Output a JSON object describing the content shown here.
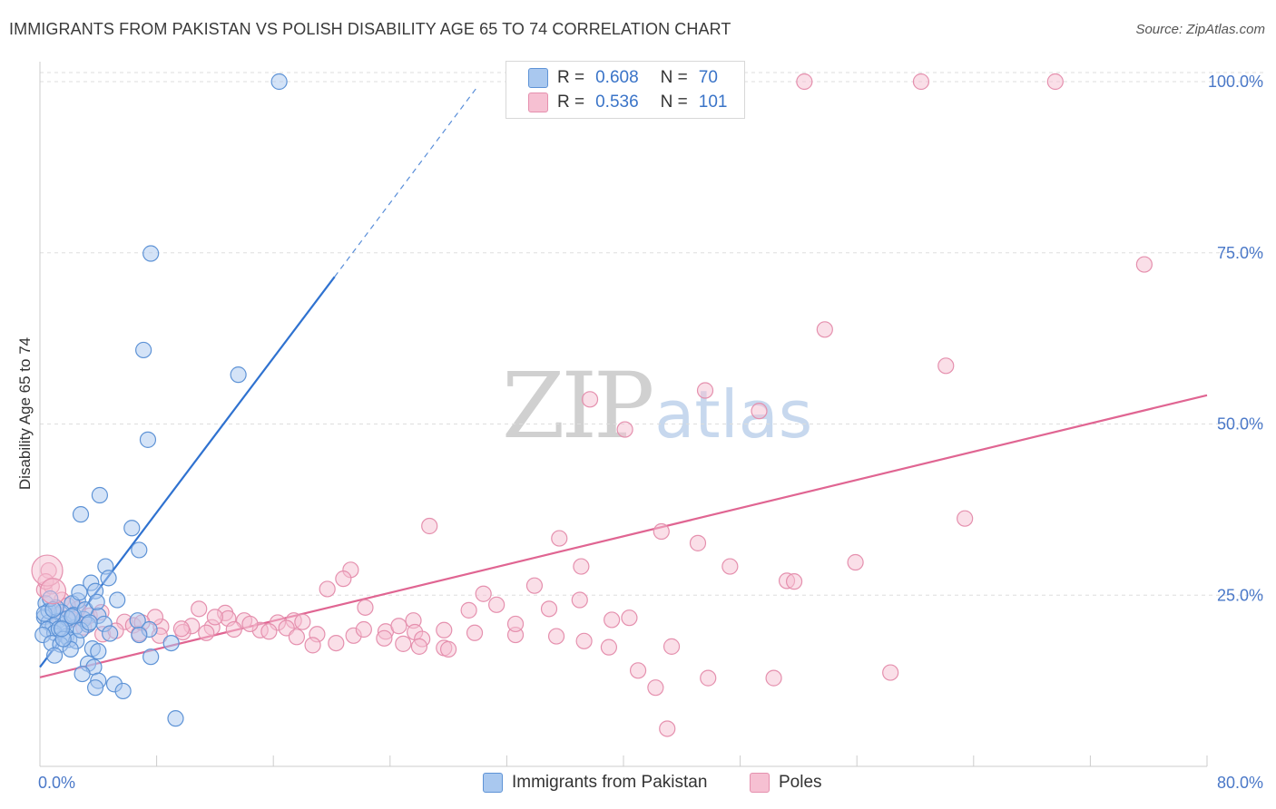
{
  "header": {
    "title": "IMMIGRANTS FROM PAKISTAN VS POLISH DISABILITY AGE 65 TO 74 CORRELATION CHART",
    "source": "Source: ZipAtlas.com"
  },
  "watermark": {
    "zip": "ZIP",
    "atlas": "atlas"
  },
  "legend_top": {
    "rows": [
      {
        "r_label": "R =",
        "r_value": "0.608",
        "n_label": "N =",
        "n_value": "70"
      },
      {
        "r_label": "R =",
        "r_value": "0.536",
        "n_label": "N =",
        "n_value": "101"
      }
    ]
  },
  "legend_bottom": {
    "items": [
      {
        "label": "Immigrants from Pakistan"
      },
      {
        "label": "Poles"
      }
    ]
  },
  "colors": {
    "blue_fill": "#a9c8ef",
    "blue_stroke": "#5e93d6",
    "blue_line": "#2f72d0",
    "pink_fill": "#f6c0d2",
    "pink_stroke": "#e590ae",
    "pink_line": "#e06592",
    "grid": "#dddddd",
    "tick_text": "#4a78c8"
  },
  "chart_data": {
    "type": "scatter",
    "title": "IMMIGRANTS FROM PAKISTAN VS POLISH DISABILITY AGE 65 TO 74 CORRELATION CHART",
    "xlabel": "",
    "ylabel": "Disability Age 65 to 74",
    "xlim": [
      0,
      80
    ],
    "ylim": [
      0,
      100
    ],
    "x_tick_labels": [
      "0.0%",
      "80.0%"
    ],
    "y_ticks": [
      25,
      50,
      75,
      100
    ],
    "y_tick_labels": [
      "25.0%",
      "50.0%",
      "75.0%",
      "100.0%"
    ],
    "grid": true,
    "series": [
      {
        "name": "Immigrants from Pakistan",
        "R": 0.608,
        "N": 70,
        "trend": {
          "x0": 0,
          "y0": 14.5,
          "x1": 20.2,
          "y1": 71.5,
          "dash_to_x": 29.9,
          "dash_to_y": 99.0
        },
        "points": [
          [
            16.4,
            100
          ],
          [
            7.6,
            74.9
          ],
          [
            7.1,
            60.8
          ],
          [
            13.6,
            57.2
          ],
          [
            7.4,
            47.7
          ],
          [
            4.1,
            39.6
          ],
          [
            2.8,
            36.8
          ],
          [
            6.3,
            34.8
          ],
          [
            6.8,
            31.6
          ],
          [
            4.5,
            29.2
          ],
          [
            4.7,
            27.5
          ],
          [
            3.5,
            26.8
          ],
          [
            3.8,
            25.6
          ],
          [
            5.3,
            24.3
          ],
          [
            0.4,
            23.8
          ],
          [
            2.6,
            24.2
          ],
          [
            2.2,
            23.8
          ],
          [
            4.0,
            22.0
          ],
          [
            1.5,
            22.5
          ],
          [
            0.3,
            21.8
          ],
          [
            0.6,
            21.0
          ],
          [
            0.9,
            20.5
          ],
          [
            1.2,
            21.2
          ],
          [
            1.7,
            20.8
          ],
          [
            2.4,
            20.3
          ],
          [
            3.0,
            21.5
          ],
          [
            3.3,
            20.7
          ],
          [
            0.5,
            20.0
          ],
          [
            1.0,
            19.5
          ],
          [
            1.8,
            19.0
          ],
          [
            0.2,
            19.2
          ],
          [
            2.0,
            18.5
          ],
          [
            0.8,
            18.0
          ],
          [
            1.4,
            17.8
          ],
          [
            2.5,
            18.3
          ],
          [
            6.7,
            21.3
          ],
          [
            7.5,
            20.0
          ],
          [
            6.8,
            19.2
          ],
          [
            9.0,
            18.0
          ],
          [
            3.6,
            17.2
          ],
          [
            4.0,
            16.8
          ],
          [
            7.6,
            16.0
          ],
          [
            3.3,
            15.0
          ],
          [
            3.7,
            14.5
          ],
          [
            2.9,
            13.5
          ],
          [
            4.0,
            12.5
          ],
          [
            5.1,
            12.0
          ],
          [
            3.8,
            11.5
          ],
          [
            5.7,
            11.0
          ],
          [
            9.3,
            7.0
          ],
          [
            0.6,
            22.7
          ],
          [
            1.1,
            23.2
          ],
          [
            2.3,
            22.1
          ],
          [
            3.1,
            22.9
          ],
          [
            1.9,
            21.6
          ],
          [
            0.7,
            24.5
          ],
          [
            2.7,
            25.4
          ],
          [
            1.3,
            20.1
          ],
          [
            2.1,
            17.1
          ],
          [
            4.4,
            20.8
          ],
          [
            3.9,
            24.0
          ],
          [
            0.3,
            22.3
          ],
          [
            1.6,
            18.6
          ],
          [
            2.8,
            19.9
          ],
          [
            0.9,
            22.9
          ],
          [
            3.4,
            21.0
          ],
          [
            1.0,
            16.2
          ],
          [
            2.2,
            21.9
          ],
          [
            4.8,
            19.4
          ],
          [
            1.5,
            20.1
          ]
        ]
      },
      {
        "name": "Poles",
        "R": 0.536,
        "N": 101,
        "trend": {
          "x0": 0,
          "y0": 13.0,
          "x1": 80,
          "y1": 54.2
        },
        "points": [
          [
            52.4,
            100
          ],
          [
            60.4,
            100
          ],
          [
            69.6,
            100
          ],
          [
            75.7,
            73.3
          ],
          [
            53.8,
            63.8
          ],
          [
            62.1,
            58.5
          ],
          [
            45.6,
            54.9
          ],
          [
            37.7,
            53.6
          ],
          [
            49.3,
            51.9
          ],
          [
            40.1,
            49.2
          ],
          [
            63.4,
            36.2
          ],
          [
            26.7,
            35.1
          ],
          [
            35.6,
            33.3
          ],
          [
            42.6,
            34.3
          ],
          [
            45.1,
            32.6
          ],
          [
            55.9,
            29.8
          ],
          [
            37.1,
            29.2
          ],
          [
            47.3,
            29.2
          ],
          [
            21.3,
            28.7
          ],
          [
            20.8,
            27.4
          ],
          [
            51.2,
            27.1
          ],
          [
            51.7,
            27.0
          ],
          [
            33.9,
            26.4
          ],
          [
            19.7,
            25.9
          ],
          [
            30.4,
            25.2
          ],
          [
            37.0,
            24.3
          ],
          [
            31.3,
            23.6
          ],
          [
            34.9,
            23.0
          ],
          [
            29.4,
            22.8
          ],
          [
            22.3,
            23.2
          ],
          [
            40.4,
            21.7
          ],
          [
            25.6,
            21.3
          ],
          [
            39.2,
            21.4
          ],
          [
            12.7,
            22.4
          ],
          [
            12.9,
            21.6
          ],
          [
            14.0,
            21.3
          ],
          [
            16.3,
            21.0
          ],
          [
            17.4,
            21.3
          ],
          [
            18.0,
            21.1
          ],
          [
            5.8,
            21.1
          ],
          [
            6.4,
            20.6
          ],
          [
            8.3,
            20.4
          ],
          [
            10.4,
            20.5
          ],
          [
            11.8,
            20.3
          ],
          [
            13.3,
            20.0
          ],
          [
            15.1,
            19.9
          ],
          [
            16.9,
            20.2
          ],
          [
            19.0,
            19.3
          ],
          [
            21.5,
            19.1
          ],
          [
            23.7,
            19.7
          ],
          [
            25.7,
            19.6
          ],
          [
            27.7,
            19.9
          ],
          [
            29.8,
            19.5
          ],
          [
            32.6,
            19.2
          ],
          [
            35.4,
            19.0
          ],
          [
            37.3,
            18.3
          ],
          [
            39.0,
            17.4
          ],
          [
            43.3,
            17.5
          ],
          [
            23.6,
            18.7
          ],
          [
            24.9,
            17.9
          ],
          [
            27.7,
            17.3
          ],
          [
            28.0,
            17.1
          ],
          [
            32.6,
            20.8
          ],
          [
            8.2,
            19.1
          ],
          [
            9.8,
            19.6
          ],
          [
            3.0,
            20.3
          ],
          [
            4.3,
            19.3
          ],
          [
            5.2,
            19.8
          ],
          [
            3.4,
            22.0
          ],
          [
            2.6,
            23.0
          ],
          [
            1.5,
            24.3
          ],
          [
            0.3,
            25.8
          ],
          [
            0.8,
            26.3
          ],
          [
            1.9,
            23.5
          ],
          [
            1.2,
            22.1
          ],
          [
            0.6,
            28.6
          ],
          [
            0.4,
            27.0
          ],
          [
            2.2,
            21.5
          ],
          [
            6.8,
            19.4
          ],
          [
            7.9,
            21.8
          ],
          [
            9.7,
            20.1
          ],
          [
            11.4,
            19.5
          ],
          [
            14.4,
            20.8
          ],
          [
            15.7,
            19.7
          ],
          [
            17.6,
            18.9
          ],
          [
            18.7,
            17.7
          ],
          [
            20.3,
            18.0
          ],
          [
            22.2,
            20.0
          ],
          [
            24.6,
            20.5
          ],
          [
            26.2,
            18.6
          ],
          [
            41.0,
            14.0
          ],
          [
            42.2,
            11.5
          ],
          [
            45.8,
            12.9
          ],
          [
            50.3,
            12.9
          ],
          [
            58.3,
            13.7
          ],
          [
            43.0,
            5.5
          ],
          [
            26.0,
            17.5
          ],
          [
            12.0,
            21.8
          ],
          [
            10.9,
            23.0
          ],
          [
            4.2,
            22.5
          ],
          [
            7.0,
            21.0
          ]
        ]
      }
    ]
  }
}
